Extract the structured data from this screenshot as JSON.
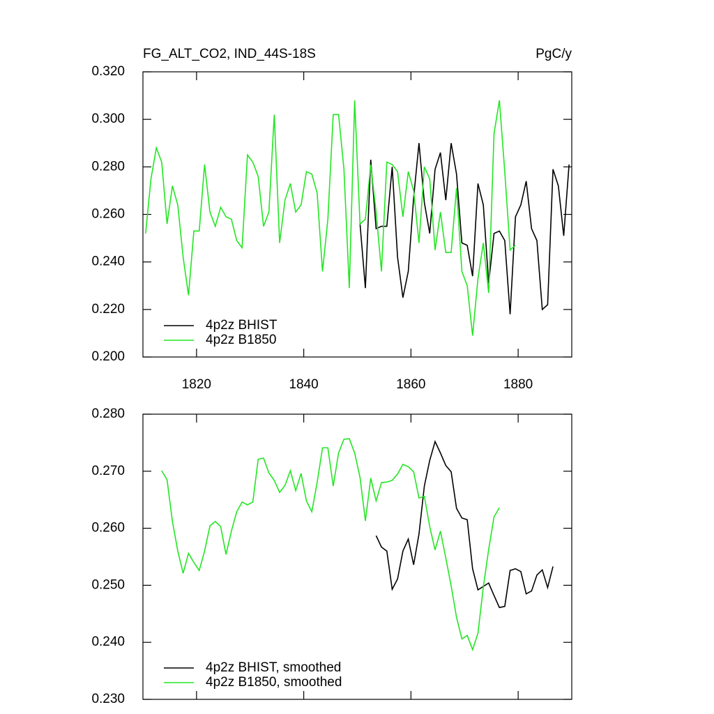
{
  "chart_data": [
    {
      "type": "line",
      "title": "FG_ALT_CO2, IND_44S-18S",
      "units": "PgC/y",
      "x": [
        1810.5,
        1811.5,
        1812.5,
        1813.5,
        1814.5,
        1815.5,
        1816.5,
        1817.5,
        1818.5,
        1819.5,
        1820.5,
        1821.5,
        1822.5,
        1823.5,
        1824.5,
        1825.5,
        1826.5,
        1827.5,
        1828.5,
        1829.5,
        1830.5,
        1831.5,
        1832.5,
        1833.5,
        1834.5,
        1835.5,
        1836.5,
        1837.5,
        1838.5,
        1839.5,
        1840.5,
        1841.5,
        1842.5,
        1843.5,
        1844.5,
        1845.5,
        1846.5,
        1847.5,
        1848.5,
        1849.5,
        1850.5,
        1851.5,
        1852.5,
        1853.5,
        1854.5,
        1855.5,
        1856.5,
        1857.5,
        1858.5,
        1859.5,
        1860.5,
        1861.5,
        1862.5,
        1863.5,
        1864.5,
        1865.5,
        1866.5,
        1867.5,
        1868.5,
        1869.5,
        1870.5,
        1871.5,
        1872.5,
        1873.5,
        1874.5,
        1875.5,
        1876.5,
        1877.5,
        1878.5,
        1879.5,
        1880.5,
        1881.5,
        1882.5,
        1883.5,
        1884.5,
        1885.5,
        1886.5,
        1887.5,
        1888.5,
        1889.5
      ],
      "series": [
        {
          "name": "4p2z BHIST",
          "color": "#000000",
          "values": [
            null,
            null,
            null,
            null,
            null,
            null,
            null,
            null,
            null,
            null,
            null,
            null,
            null,
            null,
            null,
            null,
            null,
            null,
            null,
            null,
            null,
            null,
            null,
            null,
            null,
            null,
            null,
            null,
            null,
            null,
            null,
            null,
            null,
            null,
            null,
            null,
            null,
            null,
            null,
            null,
            0.256,
            0.229,
            0.283,
            0.254,
            0.255,
            0.255,
            0.28,
            0.242,
            0.225,
            0.236,
            0.267,
            0.29,
            0.265,
            0.252,
            0.279,
            0.286,
            0.266,
            0.29,
            0.277,
            0.248,
            0.247,
            0.234,
            0.273,
            0.264,
            0.231,
            0.252,
            0.253,
            0.249,
            0.218,
            0.259,
            0.264,
            0.274,
            0.254,
            0.249,
            0.22,
            0.222,
            0.279,
            0.272,
            0.251,
            0.281
          ]
        },
        {
          "name": "4p2z B1850",
          "color": "#22e622",
          "values": [
            0.252,
            0.275,
            0.288,
            0.282,
            0.256,
            0.272,
            0.264,
            0.242,
            0.226,
            0.253,
            0.253,
            0.281,
            0.261,
            0.255,
            0.263,
            0.259,
            0.258,
            0.249,
            0.246,
            0.285,
            0.282,
            0.276,
            0.255,
            0.261,
            0.302,
            0.248,
            0.266,
            0.273,
            0.261,
            0.264,
            0.278,
            0.277,
            0.269,
            0.236,
            0.258,
            0.302,
            0.302,
            0.279,
            0.229,
            0.308,
            0.256,
            0.258,
            0.281,
            0.261,
            0.236,
            0.282,
            0.281,
            0.278,
            0.259,
            0.278,
            0.27,
            0.248,
            0.28,
            0.275,
            0.245,
            0.261,
            0.244,
            0.244,
            0.271,
            0.236,
            0.23,
            0.209,
            0.233,
            0.248,
            0.227,
            0.294,
            0.308,
            0.278,
            0.245,
            0.247,
            null,
            null,
            null,
            null,
            null,
            null,
            null,
            null,
            null,
            null
          ]
        }
      ],
      "xlim": [
        1810,
        1890
      ],
      "xticks": [
        1820,
        1840,
        1860,
        1880
      ],
      "xticklabels": true,
      "ylim": [
        0.2,
        0.32
      ],
      "yticks": [
        {
          "value": 0.2,
          "label": "0.200"
        },
        {
          "value": 0.22,
          "label": "0.220"
        },
        {
          "value": 0.24,
          "label": "0.240"
        },
        {
          "value": 0.26,
          "label": "0.260"
        },
        {
          "value": 0.28,
          "label": "0.280"
        },
        {
          "value": 0.3,
          "label": "0.300"
        },
        {
          "value": 0.32,
          "label": "0.320"
        }
      ],
      "legend": "lower left"
    },
    {
      "type": "line",
      "x": [
        1813.5,
        1814.5,
        1815.5,
        1816.5,
        1817.5,
        1818.5,
        1819.5,
        1820.5,
        1821.5,
        1822.5,
        1823.5,
        1824.5,
        1825.5,
        1826.5,
        1827.5,
        1828.5,
        1829.5,
        1830.5,
        1831.5,
        1832.5,
        1833.5,
        1834.5,
        1835.5,
        1836.5,
        1837.5,
        1838.5,
        1839.5,
        1840.5,
        1841.5,
        1842.5,
        1843.5,
        1844.5,
        1845.5,
        1846.5,
        1847.5,
        1848.5,
        1849.5,
        1850.5,
        1851.5,
        1852.5,
        1853.5,
        1854.5,
        1855.5,
        1856.5,
        1857.5,
        1858.5,
        1859.5,
        1860.5,
        1861.5,
        1862.5,
        1863.5,
        1864.5,
        1865.5,
        1866.5,
        1867.5,
        1868.5,
        1869.5,
        1870.5,
        1871.5,
        1872.5,
        1873.5,
        1874.5,
        1875.5,
        1876.5,
        1877.5,
        1878.5,
        1879.5,
        1880.5,
        1881.5,
        1882.5,
        1883.5,
        1884.5,
        1885.5,
        1886.5
      ],
      "series": [
        {
          "name": "4p2z BHIST, smoothed",
          "color": "#000000",
          "values": [
            null,
            null,
            null,
            null,
            null,
            null,
            null,
            null,
            null,
            null,
            null,
            null,
            null,
            null,
            null,
            null,
            null,
            null,
            null,
            null,
            null,
            null,
            null,
            null,
            null,
            null,
            null,
            null,
            null,
            null,
            null,
            null,
            null,
            null,
            null,
            null,
            null,
            null,
            null,
            null,
            0.2587,
            0.2567,
            0.256,
            0.2493,
            0.2511,
            0.256,
            0.2581,
            0.2536,
            0.259,
            0.2674,
            0.2719,
            0.2752,
            0.2732,
            0.271,
            0.2699,
            0.2635,
            0.2618,
            0.2615,
            0.2529,
            0.2492,
            0.2498,
            0.2504,
            0.2482,
            0.2461,
            0.2463,
            0.2526,
            0.2529,
            0.2524,
            0.2485,
            0.249,
            0.2518,
            0.2527,
            0.2496,
            0.2533
          ]
        },
        {
          "name": "4p2z B1850, smoothed",
          "color": "#22e622",
          "values": [
            0.2701,
            0.2685,
            0.2612,
            0.256,
            0.2521,
            0.2556,
            0.254,
            0.2526,
            0.256,
            0.2604,
            0.2612,
            0.2603,
            0.2554,
            0.2595,
            0.2629,
            0.2646,
            0.2641,
            0.2646,
            0.2721,
            0.2723,
            0.2697,
            0.2684,
            0.2663,
            0.2675,
            0.2701,
            0.2666,
            0.2696,
            0.2648,
            0.2629,
            0.268,
            0.2741,
            0.2741,
            0.2674,
            0.2732,
            0.2756,
            0.2757,
            0.2732,
            0.2689,
            0.2613,
            0.2688,
            0.2648,
            0.268,
            0.2681,
            0.2684,
            0.2695,
            0.2712,
            0.2708,
            0.2699,
            0.2653,
            0.2656,
            0.2603,
            0.2562,
            0.2595,
            0.2548,
            0.2499,
            0.2444,
            0.2406,
            0.2412,
            0.2387,
            0.2416,
            0.2497,
            0.2563,
            0.262,
            0.2636,
            null,
            null,
            null,
            null,
            null,
            null,
            null,
            null,
            null,
            null
          ]
        }
      ],
      "xlim": [
        1810,
        1890
      ],
      "xticks": [
        1820,
        1840,
        1860,
        1880
      ],
      "xticklabels": false,
      "ylim": [
        0.23,
        0.28
      ],
      "yticks": [
        {
          "value": 0.23,
          "label": "0.230"
        },
        {
          "value": 0.24,
          "label": "0.240"
        },
        {
          "value": 0.25,
          "label": "0.250"
        },
        {
          "value": 0.26,
          "label": "0.260"
        },
        {
          "value": 0.27,
          "label": "0.270"
        },
        {
          "value": 0.28,
          "label": "0.280"
        }
      ],
      "legend": "lower left"
    }
  ]
}
